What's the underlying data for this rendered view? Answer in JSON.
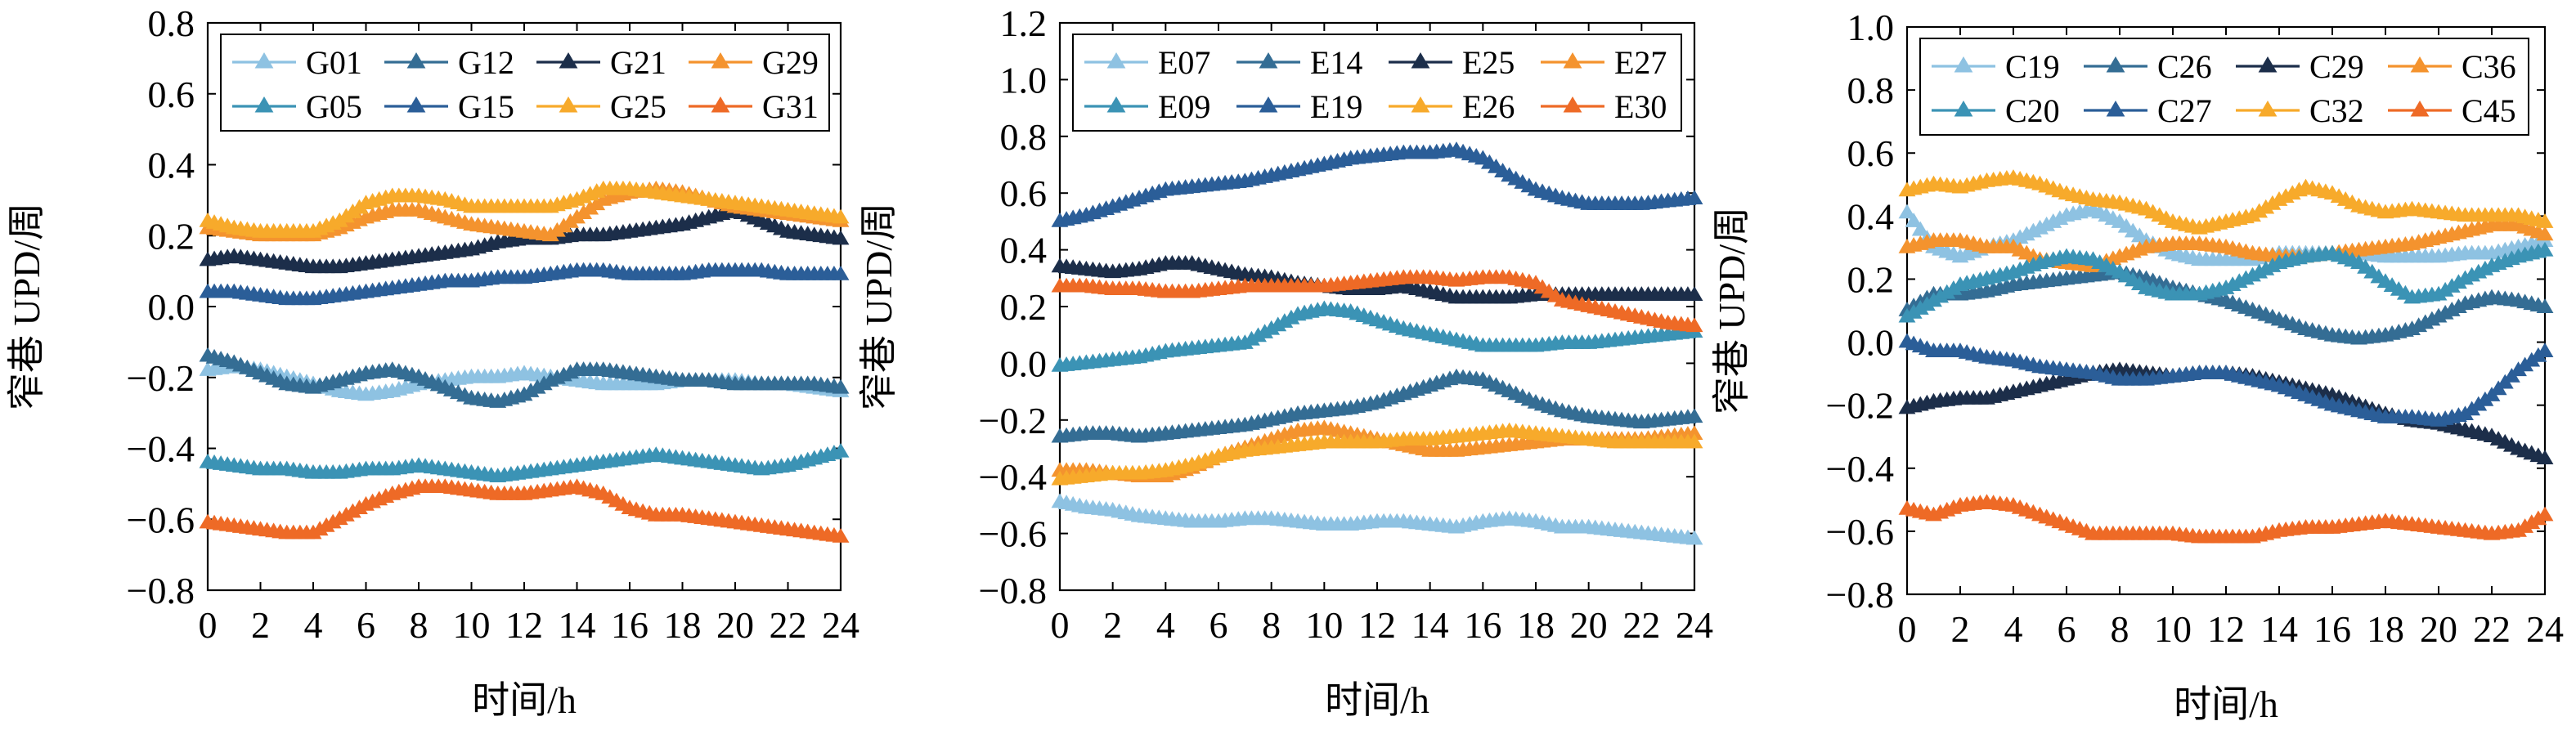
{
  "chart_data": [
    {
      "type": "line",
      "panel": "left",
      "xlabel": "时间/h",
      "ylabel": "窄巷 UPD/周",
      "xlim": [
        0,
        24
      ],
      "ylim": [
        -0.8,
        0.8
      ],
      "xticks": [
        0,
        2,
        4,
        6,
        8,
        10,
        12,
        14,
        16,
        18,
        20,
        22,
        24
      ],
      "yticks": [
        -0.8,
        -0.6,
        -0.4,
        -0.2,
        0.0,
        0.2,
        0.4,
        0.6,
        0.8
      ],
      "ytick_labels": [
        "−0.8",
        "−0.6",
        "−0.4",
        "−0.2",
        "0.0",
        "0.2",
        "0.4",
        "0.6",
        "0.8"
      ],
      "marker": "triangle",
      "grid": false,
      "legend": "top",
      "x": [
        0,
        1,
        2,
        3,
        4,
        5,
        6,
        7,
        8,
        9,
        10,
        11,
        12,
        13,
        14,
        15,
        16,
        17,
        18,
        19,
        20,
        21,
        22,
        23,
        24
      ],
      "series": [
        {
          "name": "G01",
          "color": "#8ec2e2",
          "values": [
            -0.18,
            -0.17,
            -0.18,
            -0.2,
            -0.22,
            -0.24,
            -0.25,
            -0.24,
            -0.22,
            -0.21,
            -0.2,
            -0.2,
            -0.19,
            -0.2,
            -0.21,
            -0.22,
            -0.22,
            -0.22,
            -0.21,
            -0.21,
            -0.21,
            -0.22,
            -0.22,
            -0.23,
            -0.24
          ]
        },
        {
          "name": "G12",
          "color": "#346d94",
          "values": [
            -0.14,
            -0.16,
            -0.19,
            -0.22,
            -0.23,
            -0.21,
            -0.19,
            -0.18,
            -0.2,
            -0.23,
            -0.26,
            -0.27,
            -0.25,
            -0.21,
            -0.18,
            -0.18,
            -0.19,
            -0.2,
            -0.21,
            -0.21,
            -0.22,
            -0.22,
            -0.22,
            -0.22,
            -0.23
          ]
        },
        {
          "name": "G21",
          "color": "#1c2e4a",
          "values": [
            0.13,
            0.14,
            0.13,
            0.12,
            0.11,
            0.11,
            0.12,
            0.13,
            0.14,
            0.15,
            0.16,
            0.18,
            0.19,
            0.19,
            0.2,
            0.2,
            0.21,
            0.22,
            0.23,
            0.25,
            0.27,
            0.24,
            0.21,
            0.2,
            0.19
          ]
        },
        {
          "name": "G29",
          "color": "#f4932e",
          "values": [
            0.22,
            0.21,
            0.2,
            0.2,
            0.2,
            0.22,
            0.25,
            0.27,
            0.27,
            0.25,
            0.23,
            0.22,
            0.21,
            0.2,
            0.25,
            0.3,
            0.32,
            0.33,
            0.32,
            0.3,
            0.28,
            0.27,
            0.26,
            0.25,
            0.24
          ]
        },
        {
          "name": "G05",
          "color": "#3b93b5",
          "values": [
            -0.44,
            -0.45,
            -0.46,
            -0.46,
            -0.47,
            -0.47,
            -0.46,
            -0.46,
            -0.45,
            -0.46,
            -0.47,
            -0.48,
            -0.47,
            -0.46,
            -0.45,
            -0.44,
            -0.43,
            -0.42,
            -0.43,
            -0.44,
            -0.45,
            -0.46,
            -0.45,
            -0.43,
            -0.41
          ]
        },
        {
          "name": "G15",
          "color": "#2b5e98",
          "values": [
            0.04,
            0.04,
            0.03,
            0.02,
            0.02,
            0.03,
            0.04,
            0.05,
            0.06,
            0.07,
            0.07,
            0.08,
            0.08,
            0.09,
            0.1,
            0.1,
            0.09,
            0.09,
            0.09,
            0.1,
            0.1,
            0.1,
            0.09,
            0.09,
            0.09
          ]
        },
        {
          "name": "G25",
          "color": "#f7aa2b",
          "values": [
            0.24,
            0.22,
            0.21,
            0.21,
            0.21,
            0.24,
            0.29,
            0.31,
            0.31,
            0.3,
            0.28,
            0.28,
            0.28,
            0.28,
            0.3,
            0.33,
            0.33,
            0.32,
            0.31,
            0.3,
            0.29,
            0.28,
            0.27,
            0.26,
            0.25
          ]
        },
        {
          "name": "G31",
          "color": "#ee6a26",
          "values": [
            -0.61,
            -0.62,
            -0.63,
            -0.64,
            -0.64,
            -0.6,
            -0.56,
            -0.53,
            -0.51,
            -0.51,
            -0.52,
            -0.53,
            -0.53,
            -0.52,
            -0.51,
            -0.53,
            -0.57,
            -0.59,
            -0.59,
            -0.6,
            -0.61,
            -0.62,
            -0.63,
            -0.64,
            -0.65
          ]
        }
      ]
    },
    {
      "type": "line",
      "panel": "middle",
      "xlabel": "时间/h",
      "ylabel": "窄巷 UPD/周",
      "xlim": [
        0,
        24
      ],
      "ylim": [
        -0.8,
        1.2
      ],
      "xticks": [
        0,
        2,
        4,
        6,
        8,
        10,
        12,
        14,
        16,
        18,
        20,
        22,
        24
      ],
      "yticks": [
        -0.8,
        -0.6,
        -0.4,
        -0.2,
        0.0,
        0.2,
        0.4,
        0.6,
        0.8,
        1.0,
        1.2
      ],
      "ytick_labels": [
        "−0.8",
        "−0.6",
        "−0.4",
        "−0.2",
        "0.0",
        "0.2",
        "0.4",
        "0.6",
        "0.8",
        "1.0",
        "1.2"
      ],
      "marker": "triangle",
      "grid": false,
      "legend": "top",
      "x": [
        0,
        1,
        2,
        3,
        4,
        5,
        6,
        7,
        8,
        9,
        10,
        11,
        12,
        13,
        14,
        15,
        16,
        17,
        18,
        19,
        20,
        21,
        22,
        23,
        24
      ],
      "series": [
        {
          "name": "E07",
          "color": "#8ec2e2",
          "values": [
            -0.49,
            -0.51,
            -0.52,
            -0.54,
            -0.55,
            -0.56,
            -0.56,
            -0.55,
            -0.55,
            -0.56,
            -0.57,
            -0.57,
            -0.56,
            -0.56,
            -0.57,
            -0.58,
            -0.56,
            -0.55,
            -0.56,
            -0.58,
            -0.58,
            -0.59,
            -0.6,
            -0.61,
            -0.62
          ]
        },
        {
          "name": "E14",
          "color": "#346d94",
          "values": [
            -0.26,
            -0.25,
            -0.25,
            -0.26,
            -0.25,
            -0.24,
            -0.23,
            -0.22,
            -0.2,
            -0.18,
            -0.17,
            -0.16,
            -0.14,
            -0.11,
            -0.08,
            -0.05,
            -0.06,
            -0.1,
            -0.14,
            -0.17,
            -0.19,
            -0.2,
            -0.21,
            -0.2,
            -0.19
          ]
        },
        {
          "name": "E25",
          "color": "#1c2e4a",
          "values": [
            0.34,
            0.33,
            0.32,
            0.33,
            0.35,
            0.35,
            0.33,
            0.31,
            0.3,
            0.28,
            0.27,
            0.26,
            0.26,
            0.27,
            0.25,
            0.23,
            0.23,
            0.23,
            0.24,
            0.24,
            0.24,
            0.24,
            0.24,
            0.24,
            0.24
          ]
        },
        {
          "name": "E27",
          "color": "#f4932e",
          "values": [
            -0.38,
            -0.38,
            -0.39,
            -0.4,
            -0.4,
            -0.37,
            -0.33,
            -0.3,
            -0.27,
            -0.24,
            -0.23,
            -0.25,
            -0.27,
            -0.29,
            -0.31,
            -0.31,
            -0.3,
            -0.29,
            -0.28,
            -0.27,
            -0.27,
            -0.27,
            -0.27,
            -0.26,
            -0.25
          ]
        },
        {
          "name": "E09",
          "color": "#3b93b5",
          "values": [
            -0.01,
            0.0,
            0.01,
            0.02,
            0.04,
            0.05,
            0.06,
            0.07,
            0.12,
            0.17,
            0.19,
            0.18,
            0.15,
            0.12,
            0.1,
            0.08,
            0.06,
            0.06,
            0.06,
            0.07,
            0.07,
            0.08,
            0.09,
            0.1,
            0.11
          ]
        },
        {
          "name": "E19",
          "color": "#2b5e98",
          "values": [
            0.5,
            0.52,
            0.55,
            0.58,
            0.61,
            0.62,
            0.63,
            0.64,
            0.66,
            0.68,
            0.7,
            0.72,
            0.73,
            0.74,
            0.74,
            0.75,
            0.72,
            0.66,
            0.61,
            0.58,
            0.56,
            0.56,
            0.56,
            0.57,
            0.58
          ]
        },
        {
          "name": "E26",
          "color": "#f7aa2b",
          "values": [
            -0.41,
            -0.4,
            -0.39,
            -0.39,
            -0.38,
            -0.36,
            -0.33,
            -0.31,
            -0.3,
            -0.29,
            -0.28,
            -0.28,
            -0.28,
            -0.27,
            -0.27,
            -0.26,
            -0.25,
            -0.24,
            -0.25,
            -0.26,
            -0.27,
            -0.28,
            -0.28,
            -0.28,
            -0.28
          ]
        },
        {
          "name": "E30",
          "color": "#ee6a26",
          "values": [
            0.27,
            0.27,
            0.26,
            0.26,
            0.25,
            0.25,
            0.26,
            0.27,
            0.27,
            0.27,
            0.27,
            0.28,
            0.29,
            0.3,
            0.3,
            0.29,
            0.3,
            0.3,
            0.28,
            0.22,
            0.2,
            0.18,
            0.16,
            0.14,
            0.13
          ]
        }
      ]
    },
    {
      "type": "line",
      "panel": "right",
      "xlabel": "时间/h",
      "ylabel": "窄巷 UPD/周",
      "xlim": [
        0,
        24
      ],
      "ylim": [
        -0.8,
        1.0
      ],
      "xticks": [
        0,
        2,
        4,
        6,
        8,
        10,
        12,
        14,
        16,
        18,
        20,
        22,
        24
      ],
      "yticks": [
        -0.8,
        -0.6,
        -0.4,
        -0.2,
        0.0,
        0.2,
        0.4,
        0.6,
        0.8,
        1.0
      ],
      "ytick_labels": [
        "−0.8",
        "−0.6",
        "−0.4",
        "−0.2",
        "0.0",
        "0.2",
        "0.4",
        "0.6",
        "0.8",
        "1.0"
      ],
      "marker": "triangle",
      "grid": false,
      "legend": "top",
      "x": [
        0,
        1,
        2,
        3,
        4,
        5,
        6,
        7,
        8,
        9,
        10,
        11,
        12,
        13,
        14,
        15,
        16,
        17,
        18,
        19,
        20,
        21,
        22,
        23,
        24
      ],
      "series": [
        {
          "name": "C19",
          "color": "#8ec2e2",
          "values": [
            0.41,
            0.3,
            0.27,
            0.3,
            0.32,
            0.36,
            0.4,
            0.42,
            0.38,
            0.32,
            0.28,
            0.26,
            0.26,
            0.26,
            0.28,
            0.28,
            0.28,
            0.28,
            0.27,
            0.27,
            0.27,
            0.28,
            0.28,
            0.3,
            0.32
          ]
        },
        {
          "name": "C26",
          "color": "#346d94",
          "values": [
            0.1,
            0.15,
            0.15,
            0.16,
            0.18,
            0.19,
            0.2,
            0.21,
            0.22,
            0.2,
            0.17,
            0.15,
            0.13,
            0.1,
            0.07,
            0.04,
            0.02,
            0.01,
            0.02,
            0.04,
            0.08,
            0.12,
            0.14,
            0.13,
            0.11
          ]
        },
        {
          "name": "C29",
          "color": "#1c2e4a",
          "values": [
            -0.21,
            -0.19,
            -0.18,
            -0.18,
            -0.16,
            -0.14,
            -0.12,
            -0.1,
            -0.09,
            -0.1,
            -0.11,
            -0.1,
            -0.1,
            -0.11,
            -0.13,
            -0.15,
            -0.17,
            -0.2,
            -0.23,
            -0.25,
            -0.26,
            -0.28,
            -0.3,
            -0.34,
            -0.37
          ]
        },
        {
          "name": "C36",
          "color": "#f4932e",
          "values": [
            0.3,
            0.32,
            0.32,
            0.3,
            0.3,
            0.26,
            0.25,
            0.24,
            0.27,
            0.3,
            0.31,
            0.31,
            0.3,
            0.28,
            0.27,
            0.27,
            0.28,
            0.29,
            0.3,
            0.31,
            0.33,
            0.35,
            0.37,
            0.37,
            0.34
          ]
        },
        {
          "name": "C20",
          "color": "#3b93b5",
          "values": [
            0.08,
            0.13,
            0.18,
            0.2,
            0.22,
            0.25,
            0.27,
            0.26,
            0.22,
            0.17,
            0.15,
            0.15,
            0.17,
            0.21,
            0.25,
            0.27,
            0.28,
            0.25,
            0.19,
            0.14,
            0.15,
            0.2,
            0.24,
            0.27,
            0.29
          ]
        },
        {
          "name": "C27",
          "color": "#2b5e98",
          "values": [
            0.0,
            -0.03,
            -0.03,
            -0.05,
            -0.06,
            -0.08,
            -0.09,
            -0.1,
            -0.12,
            -0.12,
            -0.11,
            -0.1,
            -0.1,
            -0.12,
            -0.14,
            -0.17,
            -0.2,
            -0.22,
            -0.24,
            -0.24,
            -0.25,
            -0.23,
            -0.17,
            -0.09,
            -0.03
          ]
        },
        {
          "name": "C32",
          "color": "#f7aa2b",
          "values": [
            0.48,
            0.5,
            0.49,
            0.51,
            0.52,
            0.5,
            0.47,
            0.45,
            0.44,
            0.42,
            0.38,
            0.36,
            0.38,
            0.4,
            0.45,
            0.49,
            0.47,
            0.43,
            0.41,
            0.42,
            0.41,
            0.4,
            0.4,
            0.4,
            0.38
          ]
        },
        {
          "name": "C45",
          "color": "#ee6a26",
          "values": [
            -0.53,
            -0.55,
            -0.52,
            -0.51,
            -0.52,
            -0.55,
            -0.58,
            -0.61,
            -0.61,
            -0.61,
            -0.61,
            -0.62,
            -0.62,
            -0.62,
            -0.6,
            -0.59,
            -0.59,
            -0.58,
            -0.57,
            -0.58,
            -0.59,
            -0.6,
            -0.61,
            -0.6,
            -0.55
          ]
        }
      ]
    }
  ]
}
